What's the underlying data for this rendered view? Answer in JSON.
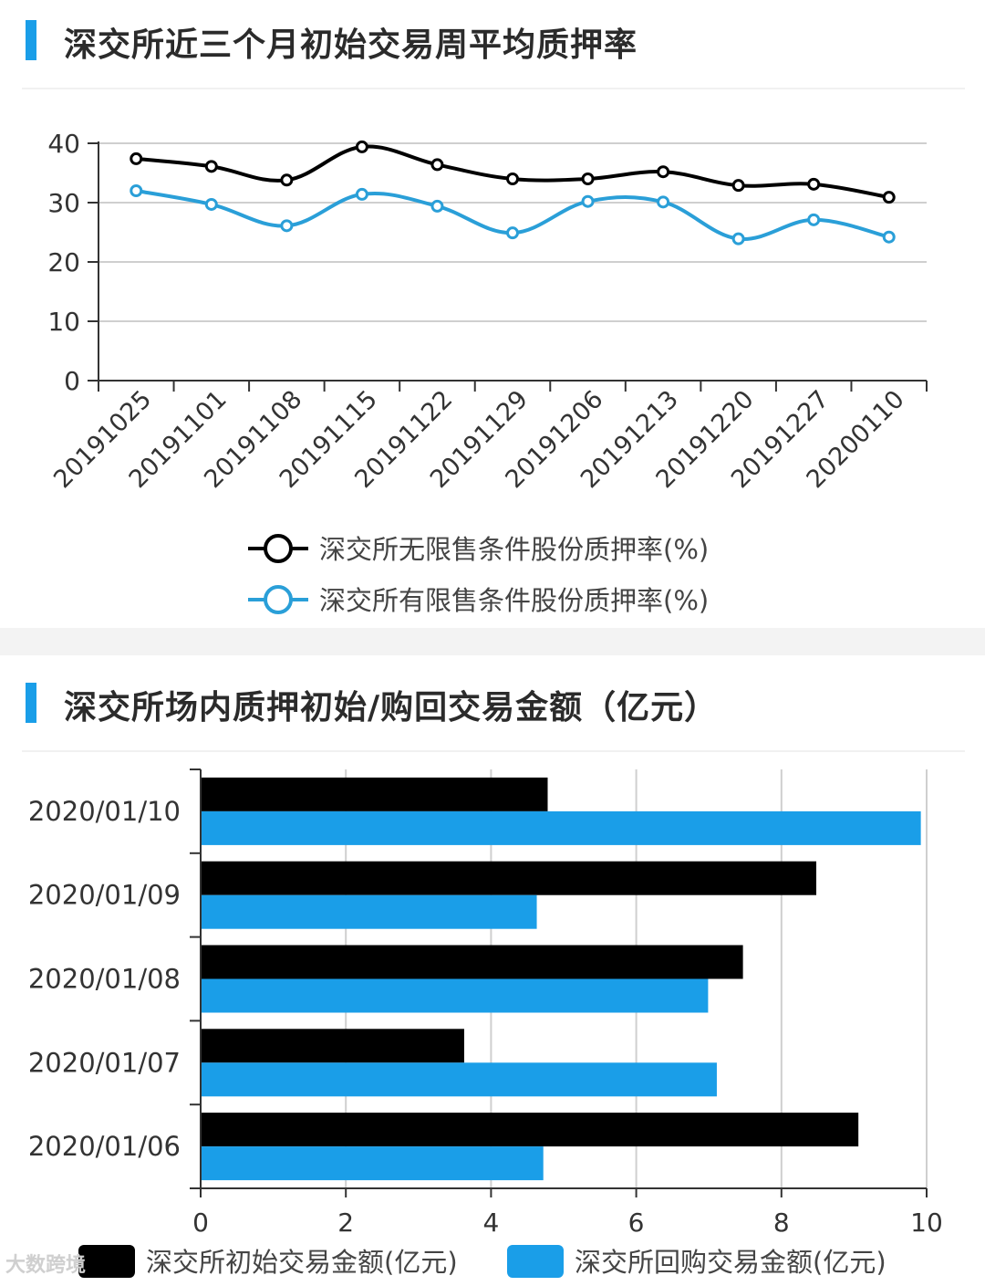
{
  "section1": {
    "title": "深交所近三个月初始交易周平均质押率"
  },
  "section2": {
    "title": "深交所场内质押初始/购回交易金额（亿元）"
  },
  "watermark": {
    "text": "大数跨境"
  },
  "colors": {
    "accent": "#1a9ee8",
    "series_black": "#000000",
    "series_blue": "#2a9fd8",
    "bar_blue": "#1a9ee8"
  },
  "chart_data": [
    {
      "type": "line",
      "title": "深交所近三个月初始交易周平均质押率",
      "categories": [
        "20191025",
        "20191101",
        "20191108",
        "20191115",
        "20191122",
        "20191129",
        "20191206",
        "20191213",
        "20191220",
        "20191227",
        "20200110"
      ],
      "series": [
        {
          "name": "深交所无限售条件股份质押率(%)",
          "values": [
            37.4,
            36.1,
            33.8,
            39.4,
            36.4,
            34.0,
            34.0,
            35.2,
            32.9,
            33.1,
            30.9
          ]
        },
        {
          "name": "深交所有限售条件股份质押率(%)",
          "values": [
            32.0,
            29.7,
            26.1,
            31.4,
            29.4,
            24.9,
            30.2,
            30.1,
            23.9,
            27.1,
            24.2
          ]
        }
      ],
      "ylim": [
        0,
        40
      ],
      "yticks": [
        "0",
        "10",
        "20",
        "30",
        "40"
      ],
      "grid": true,
      "legend": "bottom"
    },
    {
      "type": "bar",
      "orientation": "horizontal",
      "title": "深交所场内质押初始/购回交易金额（亿元）",
      "categories": [
        "2020/01/10",
        "2020/01/09",
        "2020/01/08",
        "2020/01/07",
        "2020/01/06"
      ],
      "series": [
        {
          "name": "深交所初始交易金额(亿元)",
          "values": [
            4.78,
            8.48,
            7.47,
            3.63,
            9.06
          ]
        },
        {
          "name": "深交所回购交易金额(亿元)",
          "values": [
            9.92,
            4.63,
            6.99,
            7.11,
            4.72
          ]
        }
      ],
      "xlim": [
        0,
        10
      ],
      "xticks": [
        "0",
        "2",
        "4",
        "6",
        "8",
        "10"
      ],
      "grid": true,
      "legend": "bottom"
    }
  ]
}
